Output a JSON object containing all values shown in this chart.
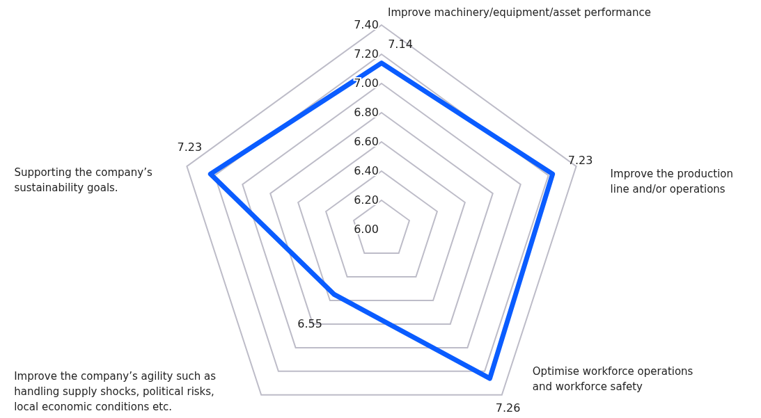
{
  "chart_data": {
    "type": "radar",
    "categories": [
      "Improve machinery/equipment/asset performance",
      "Improve the production line and/or operations",
      "Optimise workforce operations and workforce safety",
      "Improve the company’s agility such as handling supply shocks, political risks, local economic conditions etc.",
      "Supporting the company’s sustainability goals."
    ],
    "series": [
      {
        "color": "#0a5cff",
        "values": [
          7.14,
          7.23,
          7.26,
          6.55,
          7.23
        ]
      }
    ],
    "ylim": [
      6.0,
      7.4
    ],
    "yticks": [
      {
        "value": 6.0,
        "label": "6.00"
      },
      {
        "value": 6.2,
        "label": "6.20"
      },
      {
        "value": 6.4,
        "label": "6.40"
      },
      {
        "value": 6.6,
        "label": "6.60"
      },
      {
        "value": 6.8,
        "label": "6.80"
      },
      {
        "value": 7.0,
        "label": "7.00"
      },
      {
        "value": 7.2,
        "label": "7.20"
      },
      {
        "value": 7.4,
        "label": "7.40"
      }
    ],
    "grid": true,
    "data_labels": true,
    "marker": "none",
    "line_style": "solid",
    "legend": false
  }
}
